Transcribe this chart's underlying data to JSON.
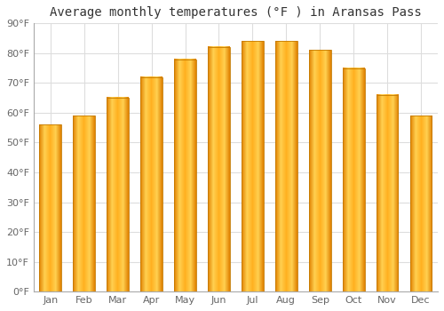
{
  "title": "Average monthly temperatures (°F ) in Aransas Pass",
  "months": [
    "Jan",
    "Feb",
    "Mar",
    "Apr",
    "May",
    "Jun",
    "Jul",
    "Aug",
    "Sep",
    "Oct",
    "Nov",
    "Dec"
  ],
  "values": [
    56,
    59,
    65,
    72,
    78,
    82,
    84,
    84,
    81,
    75,
    66,
    59
  ],
  "bar_color_light": "#FFB92A",
  "bar_color_dark": "#E08000",
  "bar_edge_color": "#B8860B",
  "background_color": "#FFFFFF",
  "plot_bg_color": "#FFFFFF",
  "grid_color": "#DDDDDD",
  "ylim": [
    0,
    90
  ],
  "yticks": [
    0,
    10,
    20,
    30,
    40,
    50,
    60,
    70,
    80,
    90
  ],
  "title_fontsize": 10,
  "tick_fontsize": 8,
  "bar_width": 0.65
}
